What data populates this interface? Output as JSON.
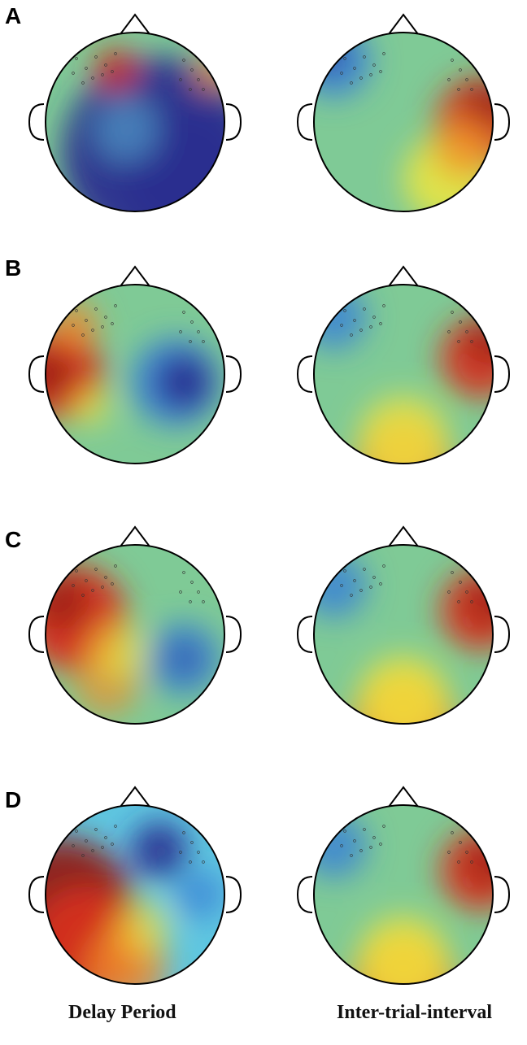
{
  "panels": [
    {
      "letter": "A"
    },
    {
      "letter": "B"
    },
    {
      "letter": "C"
    },
    {
      "letter": "D"
    }
  ],
  "columns": {
    "left_label": "Delay Period",
    "right_label": "Inter-trial-interval"
  },
  "colors": {
    "dark_blue": "#2a2f8f",
    "blue": "#3b82d6",
    "cyan": "#5fc6e0",
    "green": "#7fca96",
    "yellow": "#f6ea3a",
    "orange": "#f08a2a",
    "red": "#d9301f",
    "dark_red": "#8e1a14",
    "outline": "#000000"
  }
}
